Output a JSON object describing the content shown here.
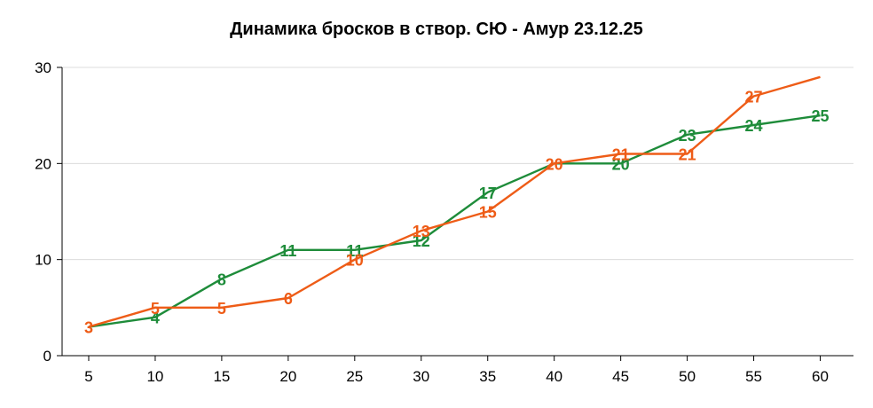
{
  "chart_data": {
    "type": "line",
    "title": "Динамика бросков в створ. СЮ - Амур 23.12.25",
    "xlabel": "",
    "ylabel": "",
    "x": [
      5,
      10,
      15,
      20,
      25,
      30,
      35,
      40,
      45,
      50,
      55,
      60
    ],
    "xlim": [
      3,
      62.5
    ],
    "ylim": [
      0,
      30
    ],
    "yticks": [
      0,
      10,
      20,
      30
    ],
    "grid": true,
    "series": [
      {
        "color": "#1e8c3a",
        "values": [
          3,
          4,
          8,
          11,
          11,
          12,
          17,
          20,
          20,
          23,
          24,
          25
        ],
        "labels": [
          "",
          "4",
          "8",
          "11",
          "11",
          "12",
          "17",
          "",
          "20",
          "23",
          "24",
          "25"
        ]
      },
      {
        "color": "#ee5c17",
        "values": [
          3,
          5,
          5,
          6,
          10,
          13,
          15,
          20,
          21,
          21,
          27,
          29
        ],
        "labels": [
          "3",
          "5",
          "5",
          "6",
          "10",
          "13",
          "15",
          "20",
          "21",
          "21",
          "27",
          ""
        ]
      }
    ]
  }
}
